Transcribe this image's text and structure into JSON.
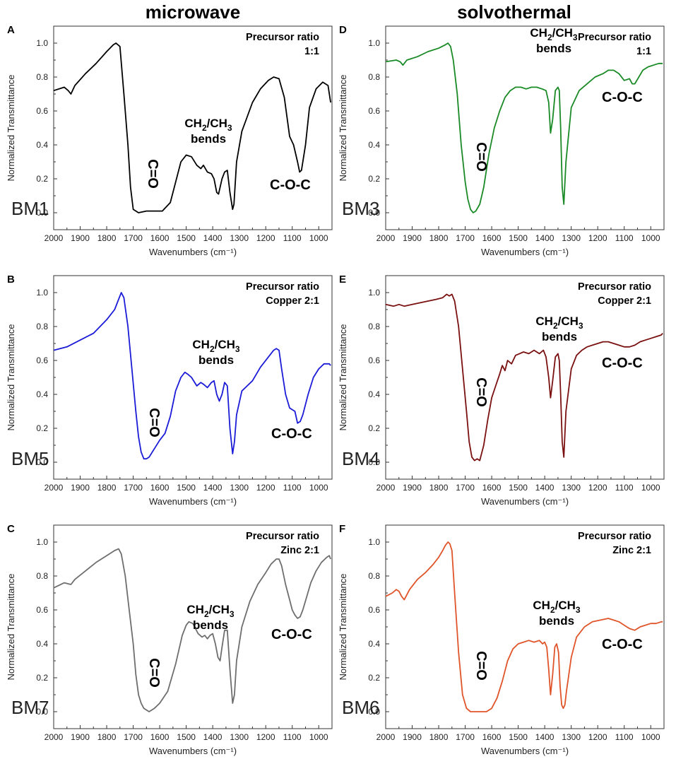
{
  "column_titles": {
    "left": "microwave",
    "right": "solvothermal"
  },
  "chart_data": [
    {
      "type": "line",
      "panel": "A",
      "sample": "BM1",
      "color": "#000000",
      "ratio_title": "Precursor ratio",
      "ratio_value": "1:1",
      "xlabel": "Wavenumbers (cm⁻¹)",
      "ylabel": "Normalized Transmittance",
      "xlim": [
        2000,
        950
      ],
      "ylim": [
        -0.1,
        1.1
      ],
      "xticks": [
        2000,
        1900,
        1800,
        1700,
        1600,
        1500,
        1400,
        1300,
        1200,
        1100,
        1000
      ],
      "yticks": [
        0.0,
        0.2,
        0.4,
        0.6,
        0.8,
        1.0
      ],
      "annotations": {
        "co": "C=O",
        "bend_top": "CH",
        "bend_sub1": "2",
        "bend_mid": "/CH",
        "bend_sub2": "3",
        "bend_bottom": "bends",
        "coc": "C-O-C"
      },
      "series": [
        {
          "name": "BM1",
          "x": [
            2000,
            1960,
            1945,
            1935,
            1920,
            1880,
            1840,
            1800,
            1775,
            1765,
            1750,
            1735,
            1720,
            1710,
            1700,
            1680,
            1650,
            1620,
            1590,
            1560,
            1540,
            1520,
            1500,
            1480,
            1460,
            1445,
            1435,
            1420,
            1405,
            1395,
            1385,
            1378,
            1365,
            1355,
            1345,
            1335,
            1325,
            1320,
            1310,
            1290,
            1250,
            1220,
            1190,
            1170,
            1150,
            1130,
            1110,
            1095,
            1080,
            1072,
            1065,
            1050,
            1035,
            1010,
            985,
            965,
            955
          ],
          "y": [
            0.72,
            0.74,
            0.72,
            0.7,
            0.75,
            0.82,
            0.88,
            0.95,
            0.99,
            1.0,
            0.98,
            0.7,
            0.4,
            0.15,
            0.02,
            0.0,
            0.01,
            0.01,
            0.01,
            0.06,
            0.18,
            0.3,
            0.34,
            0.33,
            0.28,
            0.26,
            0.28,
            0.24,
            0.23,
            0.2,
            0.12,
            0.11,
            0.2,
            0.24,
            0.25,
            0.12,
            0.02,
            0.05,
            0.3,
            0.48,
            0.65,
            0.73,
            0.78,
            0.8,
            0.79,
            0.68,
            0.45,
            0.4,
            0.3,
            0.24,
            0.25,
            0.4,
            0.62,
            0.73,
            0.77,
            0.75,
            0.65
          ]
        }
      ]
    },
    {
      "type": "line",
      "panel": "B",
      "sample": "BM5",
      "color": "#1b1bd8",
      "ratio_title": "Precursor ratio",
      "ratio_value": "Copper 2:1",
      "xlabel": "Wavenumbers (cm⁻¹)",
      "ylabel": "Normalized Transmittance",
      "xlim": [
        2000,
        950
      ],
      "ylim": [
        -0.1,
        1.1
      ],
      "xticks": [
        2000,
        1900,
        1800,
        1700,
        1600,
        1500,
        1400,
        1300,
        1200,
        1100,
        1000
      ],
      "yticks": [
        0.0,
        0.2,
        0.4,
        0.6,
        0.8,
        1.0
      ],
      "annotations": {
        "co": "C=O",
        "bend_top": "CH",
        "bend_sub1": "2",
        "bend_mid": "/CH",
        "bend_sub2": "3",
        "bend_bottom": "bends",
        "coc": "C-O-C"
      },
      "series": [
        {
          "name": "BM5",
          "x": [
            2000,
            1950,
            1900,
            1850,
            1800,
            1770,
            1755,
            1745,
            1735,
            1720,
            1705,
            1690,
            1680,
            1670,
            1660,
            1650,
            1640,
            1620,
            1600,
            1580,
            1560,
            1540,
            1520,
            1505,
            1495,
            1480,
            1460,
            1445,
            1435,
            1420,
            1405,
            1395,
            1385,
            1375,
            1365,
            1355,
            1345,
            1335,
            1325,
            1318,
            1310,
            1290,
            1270,
            1250,
            1220,
            1190,
            1170,
            1160,
            1150,
            1140,
            1125,
            1110,
            1100,
            1090,
            1080,
            1070,
            1060,
            1040,
            1020,
            1000,
            980,
            960,
            955
          ],
          "y": [
            0.66,
            0.68,
            0.72,
            0.76,
            0.84,
            0.9,
            0.96,
            1.0,
            0.97,
            0.8,
            0.55,
            0.3,
            0.15,
            0.06,
            0.02,
            0.02,
            0.03,
            0.08,
            0.13,
            0.17,
            0.27,
            0.42,
            0.5,
            0.53,
            0.52,
            0.5,
            0.45,
            0.47,
            0.46,
            0.44,
            0.47,
            0.48,
            0.4,
            0.36,
            0.4,
            0.47,
            0.45,
            0.2,
            0.05,
            0.12,
            0.28,
            0.42,
            0.45,
            0.48,
            0.56,
            0.62,
            0.66,
            0.67,
            0.66,
            0.55,
            0.4,
            0.32,
            0.31,
            0.3,
            0.23,
            0.24,
            0.28,
            0.4,
            0.5,
            0.55,
            0.58,
            0.58,
            0.57
          ]
        }
      ]
    },
    {
      "type": "line",
      "panel": "C",
      "sample": "BM7",
      "color": "#6e6e6e",
      "ratio_title": "Precursor ratio",
      "ratio_value": "Zinc 2:1",
      "xlabel": "Wavenumbers (cm⁻¹)",
      "ylabel": "Normalized Transmittance",
      "xlim": [
        2000,
        950
      ],
      "ylim": [
        -0.1,
        1.1
      ],
      "xticks": [
        2000,
        1900,
        1800,
        1700,
        1600,
        1500,
        1400,
        1300,
        1200,
        1100,
        1000
      ],
      "yticks": [
        0.0,
        0.2,
        0.4,
        0.6,
        0.8,
        1.0
      ],
      "annotations": {
        "co": "C=O",
        "bend_top": "CH",
        "bend_sub1": "2",
        "bend_mid": "/CH",
        "bend_sub2": "3",
        "bend_bottom": "bends",
        "coc": "C-O-C"
      },
      "series": [
        {
          "name": "BM7",
          "x": [
            2000,
            1960,
            1935,
            1920,
            1880,
            1840,
            1800,
            1770,
            1755,
            1745,
            1730,
            1715,
            1700,
            1690,
            1680,
            1670,
            1660,
            1640,
            1620,
            1600,
            1570,
            1540,
            1515,
            1500,
            1490,
            1475,
            1455,
            1440,
            1430,
            1420,
            1410,
            1400,
            1390,
            1380,
            1372,
            1365,
            1355,
            1345,
            1335,
            1325,
            1318,
            1310,
            1290,
            1260,
            1230,
            1200,
            1180,
            1160,
            1150,
            1140,
            1125,
            1110,
            1100,
            1090,
            1080,
            1070,
            1060,
            1045,
            1030,
            1010,
            990,
            970,
            960,
            955
          ],
          "y": [
            0.73,
            0.76,
            0.75,
            0.78,
            0.83,
            0.88,
            0.92,
            0.95,
            0.96,
            0.93,
            0.8,
            0.6,
            0.4,
            0.22,
            0.1,
            0.05,
            0.02,
            0.0,
            0.02,
            0.05,
            0.12,
            0.28,
            0.45,
            0.51,
            0.53,
            0.52,
            0.46,
            0.44,
            0.45,
            0.43,
            0.45,
            0.46,
            0.4,
            0.32,
            0.3,
            0.38,
            0.48,
            0.48,
            0.25,
            0.05,
            0.1,
            0.3,
            0.5,
            0.65,
            0.75,
            0.82,
            0.87,
            0.9,
            0.9,
            0.86,
            0.75,
            0.66,
            0.6,
            0.57,
            0.55,
            0.56,
            0.6,
            0.68,
            0.76,
            0.83,
            0.88,
            0.91,
            0.92,
            0.9
          ]
        }
      ]
    },
    {
      "type": "line",
      "panel": "D",
      "sample": "BM3",
      "color": "#1a8a26",
      "ratio_title": "Precursor ratio",
      "ratio_value": "1:1",
      "xlabel": "Wavenumbers (cm⁻¹)",
      "ylabel": "Normalized Transmittance",
      "xlim": [
        2000,
        950
      ],
      "ylim": [
        -0.1,
        1.1
      ],
      "xticks": [
        2000,
        1900,
        1800,
        1700,
        1600,
        1500,
        1400,
        1300,
        1200,
        1100,
        1000
      ],
      "yticks": [
        0.0,
        0.2,
        0.4,
        0.6,
        0.8,
        1.0
      ],
      "annotations": {
        "co": "C=O",
        "bend_top": "CH",
        "bend_sub1": "2",
        "bend_mid": "/CH",
        "bend_sub2": "3",
        "bend_bottom": "bends",
        "coc": "C-O-C"
      },
      "series": [
        {
          "name": "BM3",
          "x": [
            2000,
            1960,
            1945,
            1935,
            1920,
            1880,
            1840,
            1800,
            1775,
            1765,
            1755,
            1745,
            1730,
            1715,
            1700,
            1690,
            1680,
            1670,
            1660,
            1645,
            1630,
            1610,
            1590,
            1570,
            1550,
            1530,
            1510,
            1490,
            1470,
            1450,
            1430,
            1410,
            1395,
            1385,
            1378,
            1370,
            1360,
            1350,
            1345,
            1340,
            1334,
            1328,
            1320,
            1300,
            1270,
            1240,
            1210,
            1180,
            1160,
            1140,
            1120,
            1100,
            1080,
            1070,
            1060,
            1045,
            1030,
            1010,
            990,
            970,
            955
          ],
          "y": [
            0.89,
            0.9,
            0.89,
            0.87,
            0.9,
            0.92,
            0.95,
            0.97,
            0.99,
            1.0,
            0.98,
            0.9,
            0.7,
            0.4,
            0.18,
            0.08,
            0.02,
            0.0,
            0.01,
            0.05,
            0.15,
            0.35,
            0.5,
            0.6,
            0.68,
            0.72,
            0.74,
            0.74,
            0.73,
            0.74,
            0.74,
            0.73,
            0.72,
            0.65,
            0.47,
            0.55,
            0.72,
            0.74,
            0.72,
            0.5,
            0.15,
            0.05,
            0.3,
            0.62,
            0.72,
            0.76,
            0.8,
            0.82,
            0.84,
            0.84,
            0.82,
            0.78,
            0.79,
            0.76,
            0.76,
            0.8,
            0.84,
            0.86,
            0.87,
            0.88,
            0.88
          ]
        }
      ]
    },
    {
      "type": "line",
      "panel": "E",
      "sample": "BM4",
      "color": "#7a1010",
      "ratio_title": "Precursor ratio",
      "ratio_value": "Copper 2:1",
      "xlabel": "Wavenumbers (cm⁻¹)",
      "ylabel": "Normalized Transmittance",
      "xlim": [
        2000,
        950
      ],
      "ylim": [
        -0.1,
        1.1
      ],
      "xticks": [
        2000,
        1900,
        1800,
        1700,
        1600,
        1500,
        1400,
        1300,
        1200,
        1100,
        1000
      ],
      "yticks": [
        0.0,
        0.2,
        0.4,
        0.6,
        0.8,
        1.0
      ],
      "annotations": {
        "co": "C=O",
        "bend_top": "CH",
        "bend_sub1": "2",
        "bend_mid": "/CH",
        "bend_sub2": "3",
        "bend_bottom": "bends",
        "coc": "C-O-C"
      },
      "series": [
        {
          "name": "BM4",
          "x": [
            2000,
            1970,
            1950,
            1930,
            1900,
            1870,
            1840,
            1810,
            1785,
            1770,
            1760,
            1750,
            1740,
            1725,
            1710,
            1695,
            1685,
            1675,
            1665,
            1655,
            1645,
            1630,
            1615,
            1600,
            1585,
            1570,
            1560,
            1550,
            1540,
            1525,
            1510,
            1495,
            1480,
            1460,
            1440,
            1420,
            1405,
            1395,
            1385,
            1378,
            1370,
            1360,
            1350,
            1345,
            1340,
            1334,
            1328,
            1320,
            1300,
            1280,
            1260,
            1240,
            1220,
            1200,
            1180,
            1160,
            1140,
            1120,
            1100,
            1080,
            1060,
            1040,
            1020,
            1000,
            980,
            960,
            955
          ],
          "y": [
            0.93,
            0.92,
            0.93,
            0.92,
            0.93,
            0.94,
            0.95,
            0.96,
            0.97,
            0.99,
            0.98,
            0.99,
            0.95,
            0.8,
            0.55,
            0.3,
            0.12,
            0.03,
            0.01,
            0.02,
            0.01,
            0.1,
            0.25,
            0.38,
            0.45,
            0.52,
            0.57,
            0.54,
            0.6,
            0.58,
            0.63,
            0.64,
            0.65,
            0.64,
            0.66,
            0.64,
            0.66,
            0.62,
            0.5,
            0.38,
            0.48,
            0.62,
            0.64,
            0.6,
            0.4,
            0.12,
            0.03,
            0.3,
            0.55,
            0.63,
            0.66,
            0.68,
            0.69,
            0.7,
            0.71,
            0.71,
            0.7,
            0.69,
            0.68,
            0.68,
            0.69,
            0.71,
            0.72,
            0.73,
            0.74,
            0.75,
            0.76
          ]
        }
      ]
    },
    {
      "type": "line",
      "panel": "F",
      "sample": "BM6",
      "color": "#e0542a",
      "ratio_title": "Precursor ratio",
      "ratio_value": "Zinc 2:1",
      "xlabel": "Wavenumbers (cm⁻¹)",
      "ylabel": "Normalized Transmittance",
      "xlim": [
        2000,
        950
      ],
      "ylim": [
        -0.1,
        1.1
      ],
      "xticks": [
        2000,
        1900,
        1800,
        1700,
        1600,
        1500,
        1400,
        1300,
        1200,
        1100,
        1000
      ],
      "yticks": [
        0.0,
        0.2,
        0.4,
        0.6,
        0.8,
        1.0
      ],
      "annotations": {
        "co": "C=O",
        "bend_top": "CH",
        "bend_sub1": "2",
        "bend_mid": "/CH",
        "bend_sub2": "3",
        "bend_bottom": "bends",
        "coc": "C-O-C"
      },
      "series": [
        {
          "name": "BM6",
          "x": [
            2000,
            1975,
            1960,
            1950,
            1940,
            1930,
            1910,
            1880,
            1850,
            1820,
            1800,
            1785,
            1775,
            1765,
            1758,
            1750,
            1740,
            1725,
            1710,
            1695,
            1680,
            1660,
            1640,
            1620,
            1600,
            1580,
            1560,
            1540,
            1520,
            1500,
            1480,
            1460,
            1440,
            1420,
            1408,
            1400,
            1392,
            1385,
            1378,
            1370,
            1362,
            1355,
            1348,
            1342,
            1336,
            1330,
            1324,
            1318,
            1300,
            1280,
            1250,
            1220,
            1190,
            1160,
            1140,
            1120,
            1100,
            1080,
            1060,
            1040,
            1020,
            1000,
            980,
            960,
            955
          ],
          "y": [
            0.68,
            0.7,
            0.72,
            0.71,
            0.68,
            0.66,
            0.72,
            0.78,
            0.82,
            0.87,
            0.91,
            0.95,
            0.98,
            1.0,
            0.99,
            0.95,
            0.7,
            0.35,
            0.1,
            0.02,
            0.0,
            0.0,
            0.0,
            0.0,
            0.02,
            0.08,
            0.18,
            0.3,
            0.37,
            0.4,
            0.41,
            0.42,
            0.41,
            0.42,
            0.4,
            0.41,
            0.38,
            0.25,
            0.1,
            0.22,
            0.38,
            0.4,
            0.35,
            0.15,
            0.04,
            0.02,
            0.04,
            0.12,
            0.32,
            0.44,
            0.5,
            0.53,
            0.54,
            0.55,
            0.54,
            0.53,
            0.51,
            0.49,
            0.48,
            0.5,
            0.51,
            0.52,
            0.52,
            0.53,
            0.53
          ]
        }
      ]
    }
  ]
}
